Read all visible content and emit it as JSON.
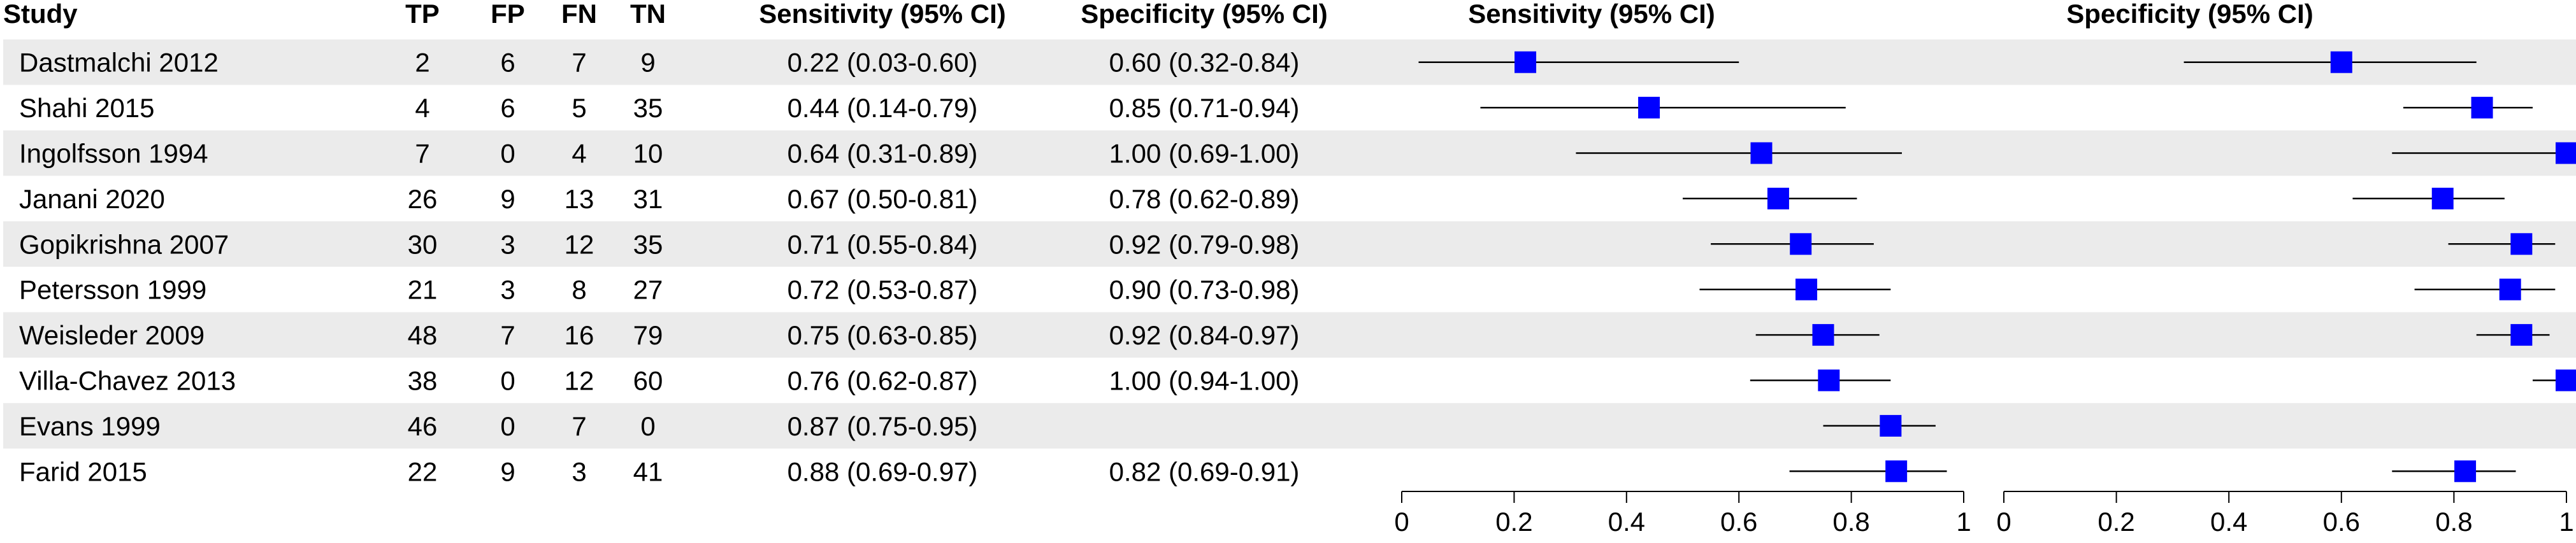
{
  "columns": {
    "study": "Study",
    "tp": "TP",
    "fp": "FP",
    "fn": "FN",
    "tn": "TN",
    "sens_ci": "Sensitivity (95% CI)",
    "spec_ci": "Specificity (95% CI)"
  },
  "colors": {
    "marker": "#0000ff",
    "band": "#ebebeb",
    "line": "#000000"
  },
  "chart_data": [
    {
      "type": "forest",
      "title": "Sensitivity (95% CI)",
      "xlim": [
        0,
        1
      ],
      "ticks": [
        0,
        0.2,
        0.4,
        0.6,
        0.8,
        1
      ],
      "tick_labels": [
        "0",
        "0.2",
        "0.4",
        "0.6",
        "0.8",
        "1"
      ],
      "series": [
        {
          "study": "Dastmalchi 2012",
          "value": 0.22,
          "ci": [
            0.03,
            0.6
          ]
        },
        {
          "study": "Shahi 2015",
          "value": 0.44,
          "ci": [
            0.14,
            0.79
          ]
        },
        {
          "study": "Ingolfsson 1994",
          "value": 0.64,
          "ci": [
            0.31,
            0.89
          ]
        },
        {
          "study": "Janani 2020",
          "value": 0.67,
          "ci": [
            0.5,
            0.81
          ]
        },
        {
          "study": "Gopikrishna 2007",
          "value": 0.71,
          "ci": [
            0.55,
            0.84
          ]
        },
        {
          "study": "Petersson 1999",
          "value": 0.72,
          "ci": [
            0.53,
            0.87
          ]
        },
        {
          "study": "Weisleder 2009",
          "value": 0.75,
          "ci": [
            0.63,
            0.85
          ]
        },
        {
          "study": "Villa-Chavez 2013",
          "value": 0.76,
          "ci": [
            0.62,
            0.87
          ]
        },
        {
          "study": "Evans 1999",
          "value": 0.87,
          "ci": [
            0.75,
            0.95
          ]
        },
        {
          "study": "Farid 2015",
          "value": 0.88,
          "ci": [
            0.69,
            0.97
          ]
        }
      ]
    },
    {
      "type": "forest",
      "title": "Specificity (95% CI)",
      "xlim": [
        0,
        1
      ],
      "ticks": [
        0,
        0.2,
        0.4,
        0.6,
        0.8,
        1
      ],
      "tick_labels": [
        "0",
        "0.2",
        "0.4",
        "0.6",
        "0.8",
        "1"
      ],
      "series": [
        {
          "study": "Dastmalchi 2012",
          "value": 0.6,
          "ci": [
            0.32,
            0.84
          ]
        },
        {
          "study": "Shahi 2015",
          "value": 0.85,
          "ci": [
            0.71,
            0.94
          ]
        },
        {
          "study": "Ingolfsson 1994",
          "value": 1.0,
          "ci": [
            0.69,
            1.0
          ]
        },
        {
          "study": "Janani 2020",
          "value": 0.78,
          "ci": [
            0.62,
            0.89
          ]
        },
        {
          "study": "Gopikrishna 2007",
          "value": 0.92,
          "ci": [
            0.79,
            0.98
          ]
        },
        {
          "study": "Petersson 1999",
          "value": 0.9,
          "ci": [
            0.73,
            0.98
          ]
        },
        {
          "study": "Weisleder 2009",
          "value": 0.92,
          "ci": [
            0.84,
            0.97
          ]
        },
        {
          "study": "Villa-Chavez 2013",
          "value": 1.0,
          "ci": [
            0.94,
            1.0
          ]
        },
        {
          "study": "Evans 1999",
          "value": null,
          "ci": null
        },
        {
          "study": "Farid 2015",
          "value": 0.82,
          "ci": [
            0.69,
            0.91
          ]
        }
      ]
    }
  ],
  "rows": [
    {
      "study": "Dastmalchi 2012",
      "tp": "2",
      "fp": "6",
      "fn": "7",
      "tn": "9",
      "sens": "0.22 (0.03-0.60)",
      "spec": "0.60 (0.32-0.84)"
    },
    {
      "study": "Shahi 2015",
      "tp": "4",
      "fp": "6",
      "fn": "5",
      "tn": "35",
      "sens": "0.44 (0.14-0.79)",
      "spec": "0.85 (0.71-0.94)"
    },
    {
      "study": "Ingolfsson 1994",
      "tp": "7",
      "fp": "0",
      "fn": "4",
      "tn": "10",
      "sens": "0.64 (0.31-0.89)",
      "spec": "1.00 (0.69-1.00)"
    },
    {
      "study": "Janani 2020",
      "tp": "26",
      "fp": "9",
      "fn": "13",
      "tn": "31",
      "sens": "0.67 (0.50-0.81)",
      "spec": "0.78 (0.62-0.89)"
    },
    {
      "study": "Gopikrishna 2007",
      "tp": "30",
      "fp": "3",
      "fn": "12",
      "tn": "35",
      "sens": "0.71 (0.55-0.84)",
      "spec": "0.92 (0.79-0.98)"
    },
    {
      "study": "Petersson 1999",
      "tp": "21",
      "fp": "3",
      "fn": "8",
      "tn": "27",
      "sens": "0.72 (0.53-0.87)",
      "spec": "0.90 (0.73-0.98)"
    },
    {
      "study": "Weisleder 2009",
      "tp": "48",
      "fp": "7",
      "fn": "16",
      "tn": "79",
      "sens": "0.75 (0.63-0.85)",
      "spec": "0.92 (0.84-0.97)"
    },
    {
      "study": "Villa-Chavez 2013",
      "tp": "38",
      "fp": "0",
      "fn": "12",
      "tn": "60",
      "sens": "0.76 (0.62-0.87)",
      "spec": "1.00 (0.94-1.00)"
    },
    {
      "study": "Evans 1999",
      "tp": "46",
      "fp": "0",
      "fn": "7",
      "tn": "0",
      "sens": "0.87 (0.75-0.95)",
      "spec": ""
    },
    {
      "study": "Farid 2015",
      "tp": "22",
      "fp": "9",
      "fn": "3",
      "tn": "41",
      "sens": "0.88 (0.69-0.97)",
      "spec": "0.82 (0.69-0.91)"
    }
  ]
}
